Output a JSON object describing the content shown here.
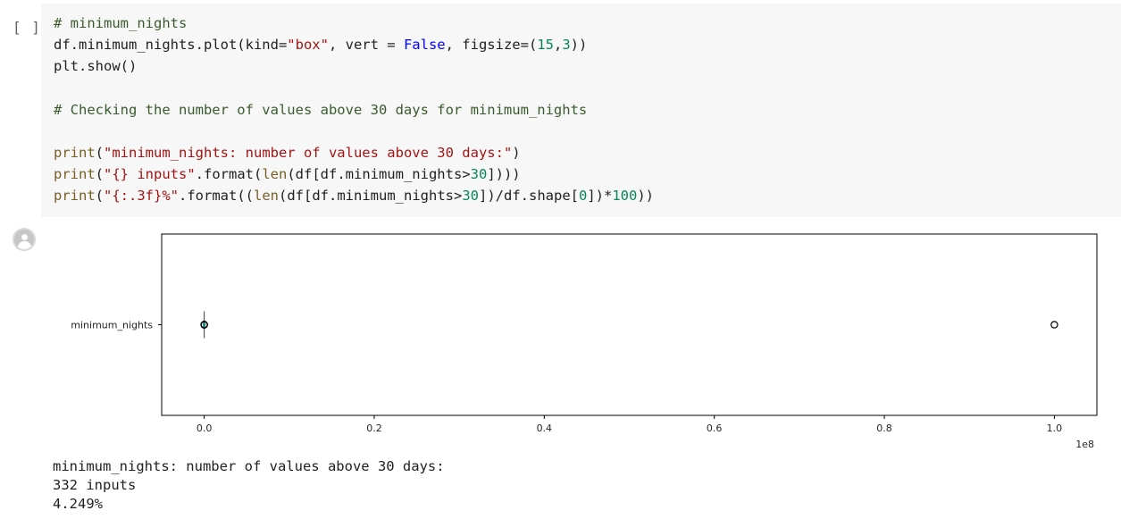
{
  "cell": {
    "run_indicator": "[ ]",
    "code": [
      [
        {
          "t": "# minimum_nights",
          "c": "comment"
        }
      ],
      [
        {
          "t": "df.minimum_nights.plot(kind="
        },
        {
          "t": "\"box\"",
          "c": "string"
        },
        {
          "t": ", vert = "
        },
        {
          "t": "False",
          "c": "kw"
        },
        {
          "t": ", figsize=("
        },
        {
          "t": "15",
          "c": "number"
        },
        {
          "t": ","
        },
        {
          "t": "3",
          "c": "number"
        },
        {
          "t": "))"
        }
      ],
      [
        {
          "t": "plt.show()"
        }
      ],
      [],
      [
        {
          "t": "# Checking the number of values above 30 days for minimum_nights",
          "c": "comment"
        }
      ],
      [],
      [
        {
          "t": "print",
          "c": "builtin"
        },
        {
          "t": "("
        },
        {
          "t": "\"minimum_nights: number of values above 30 days:\"",
          "c": "string"
        },
        {
          "t": ")"
        }
      ],
      [
        {
          "t": "print",
          "c": "builtin"
        },
        {
          "t": "("
        },
        {
          "t": "\"{} inputs\"",
          "c": "string"
        },
        {
          "t": ".format("
        },
        {
          "t": "len",
          "c": "builtin"
        },
        {
          "t": "(df[df.minimum_nights>"
        },
        {
          "t": "30",
          "c": "number"
        },
        {
          "t": "])))"
        }
      ],
      [
        {
          "t": "print",
          "c": "builtin"
        },
        {
          "t": "("
        },
        {
          "t": "\"{:.3f}%\"",
          "c": "string"
        },
        {
          "t": ".format(("
        },
        {
          "t": "len",
          "c": "builtin"
        },
        {
          "t": "(df[df.minimum_nights>"
        },
        {
          "t": "30",
          "c": "number"
        },
        {
          "t": "])/df.shape["
        },
        {
          "t": "0",
          "c": "number"
        },
        {
          "t": "])*"
        },
        {
          "t": "100",
          "c": "number"
        },
        {
          "t": "))"
        }
      ]
    ]
  },
  "output": {
    "icon": "output-user-icon",
    "stdout": [
      "minimum_nights: number of values above 30 days:",
      "332 inputs",
      "4.249%"
    ]
  },
  "chart_data": {
    "type": "box",
    "orientation": "horizontal",
    "title": "",
    "xlabel": "",
    "ylabel": "",
    "categories": [
      "minimum_nights"
    ],
    "x_ticks": [
      "0.0",
      "0.2",
      "0.4",
      "0.6",
      "0.8",
      "1.0"
    ],
    "x_tick_values": [
      0,
      0.2,
      0.4,
      0.6,
      0.8,
      1.0
    ],
    "x_offset_label": "1e8",
    "xlim": [
      -0.05,
      1.05
    ],
    "scale": 100000000,
    "box": {
      "q1": 2,
      "median": 3,
      "q3": 5,
      "whisker_low": 1,
      "whisker_high": 30
    },
    "outliers": [
      60,
      365,
      500,
      1000,
      100000000
    ],
    "colors": {
      "box": "#1f77b4",
      "outlier_edge": "#000000",
      "axes": "#000000"
    },
    "grid": false
  }
}
